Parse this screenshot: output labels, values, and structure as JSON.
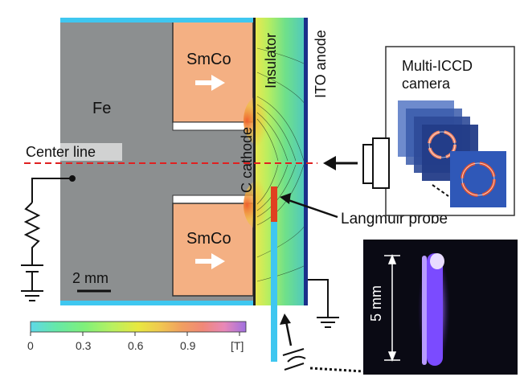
{
  "labels": {
    "iron": "Fe",
    "magnet_top": "SmCo",
    "magnet_bottom": "SmCo",
    "center_line": "Center line",
    "cathode": "C cathode",
    "insulator": "Insulator",
    "anode": "ITO anode",
    "camera": "Multi-ICCD camera",
    "probe": "Langmuir probe",
    "scale_bar": "2 mm",
    "photo_scale": "5 mm"
  },
  "colorbar": {
    "ticks": [
      "0",
      "0.3",
      "0.6",
      "0.9"
    ],
    "unit": "[T]",
    "colors": [
      "#5fd8e8",
      "#66e8a8",
      "#7ff07a",
      "#b8f060",
      "#e8e840",
      "#f0c850",
      "#f0a060",
      "#f08878",
      "#e888b8",
      "#c898e0",
      "#a070e0"
    ]
  },
  "colors": {
    "iron": "#8c8f90",
    "magnet": "#f4b083",
    "cyan_plate": "#3fc7f0",
    "anode_blue": "#1a2f8a",
    "center_line": "#e02020",
    "probe": "#e04020",
    "plasma": "#7b4bff"
  }
}
